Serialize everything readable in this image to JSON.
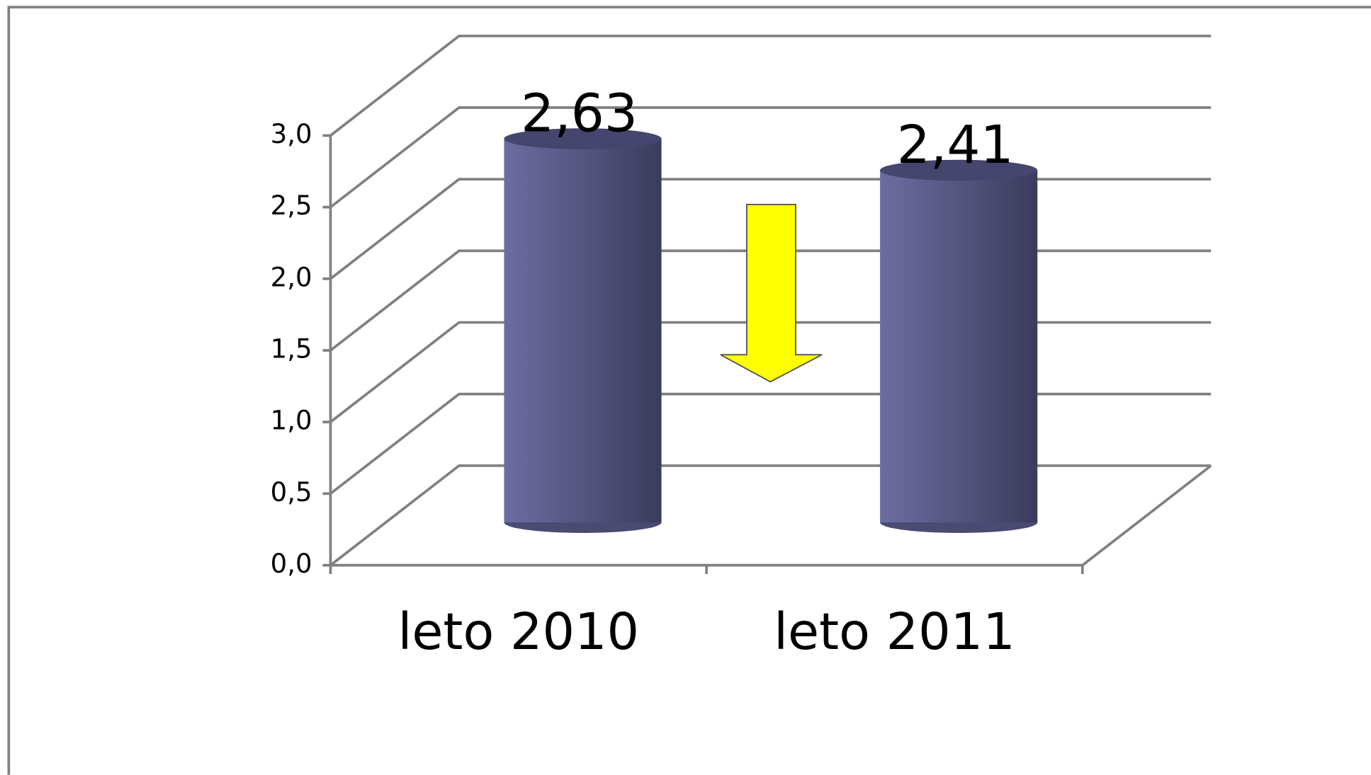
{
  "chart_data": {
    "type": "bar",
    "categories": [
      "leto 2010",
      "leto 2011"
    ],
    "values": [
      2.63,
      2.41
    ],
    "value_labels": [
      "2,63",
      "2,41"
    ],
    "color": "#5a5a8c",
    "ylim": [
      0,
      3
    ],
    "yticks": [
      {
        "value": 0,
        "label": "0,0"
      },
      {
        "value": 0.5,
        "label": "0,5"
      },
      {
        "value": 1,
        "label": "1,0"
      },
      {
        "value": 1.5,
        "label": "1,5"
      },
      {
        "value": 2,
        "label": "2,0"
      },
      {
        "value": 2.5,
        "label": "2,5"
      },
      {
        "value": 3,
        "label": "3,0"
      }
    ],
    "grid": true
  }
}
